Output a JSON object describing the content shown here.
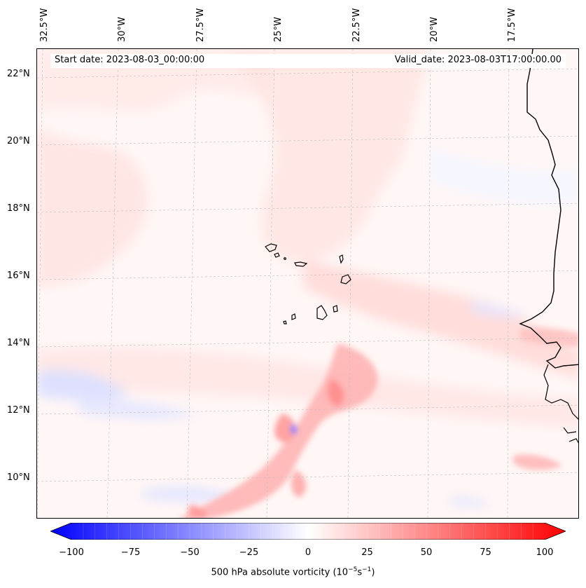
{
  "header": {
    "start_date": "Start date: 2023-08-03_00:00:00",
    "valid_date": "Valid_date: 2023-08-03T17:00:00.00"
  },
  "axes": {
    "longitude_labels": [
      "32.5°W",
      "30°W",
      "27.5°W",
      "25°W",
      "22.5°W",
      "20°W",
      "17.5°W"
    ],
    "latitude_labels": [
      "22°N",
      "20°N",
      "18°N",
      "16°N",
      "14°N",
      "12°N",
      "10°N"
    ]
  },
  "colorbar": {
    "ticks": [
      "−100",
      "−75",
      "−50",
      "−25",
      "0",
      "25",
      "50",
      "75",
      "100"
    ],
    "label_prefix": "500 hPa absolute vorticity (10",
    "label_exp1": "−5",
    "label_mid": "s",
    "label_exp2": "−1",
    "label_suffix": ")",
    "min": -100,
    "max": 100,
    "colormap": "bwr",
    "color_low": "#0000ff",
    "color_mid": "#ffffff",
    "color_high": "#ff0000"
  },
  "map": {
    "field": "500 hPa absolute vorticity",
    "gridlines": true,
    "coastline_color": "#000000",
    "background_tint": "#fff7f6"
  }
}
